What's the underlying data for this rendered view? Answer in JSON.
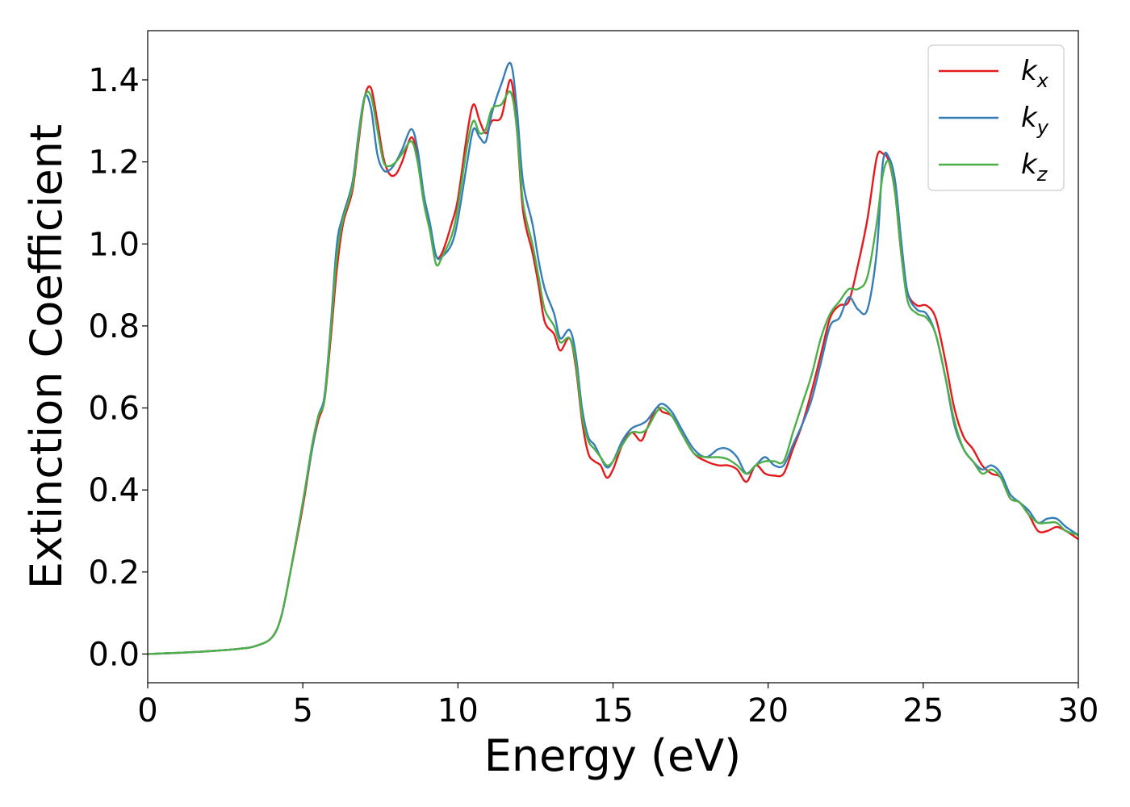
{
  "chart_data": {
    "type": "line",
    "title": "",
    "xlabel": "Energy (eV)",
    "ylabel": "Extinction Coefficient",
    "xlim": [
      0,
      30
    ],
    "ylim": [
      -0.07,
      1.52
    ],
    "xticks": [
      0,
      5,
      10,
      15,
      20,
      25,
      30
    ],
    "xtick_labels": [
      "0",
      "5",
      "10",
      "15",
      "20",
      "25",
      "30"
    ],
    "yticks": [
      0.0,
      0.2,
      0.4,
      0.6,
      0.8,
      1.0,
      1.2,
      1.4
    ],
    "ytick_labels": [
      "0.0",
      "0.2",
      "0.4",
      "0.6",
      "0.8",
      "1.0",
      "1.2",
      "1.4"
    ],
    "grid": false,
    "legend_position": "top-right",
    "series": [
      {
        "name": "k_x",
        "label_main": "k",
        "label_sub": "x",
        "color": "#e41a1c",
        "points": [
          [
            0,
            0.0
          ],
          [
            1,
            0.003
          ],
          [
            2,
            0.007
          ],
          [
            3,
            0.013
          ],
          [
            3.5,
            0.02
          ],
          [
            4,
            0.04
          ],
          [
            4.3,
            0.09
          ],
          [
            4.6,
            0.2
          ],
          [
            5,
            0.36
          ],
          [
            5.3,
            0.5
          ],
          [
            5.5,
            0.57
          ],
          [
            5.7,
            0.62
          ],
          [
            5.9,
            0.77
          ],
          [
            6.1,
            0.94
          ],
          [
            6.3,
            1.05
          ],
          [
            6.6,
            1.13
          ],
          [
            6.8,
            1.25
          ],
          [
            7.0,
            1.36
          ],
          [
            7.2,
            1.38
          ],
          [
            7.4,
            1.3
          ],
          [
            7.6,
            1.21
          ],
          [
            7.8,
            1.17
          ],
          [
            8.0,
            1.17
          ],
          [
            8.2,
            1.2
          ],
          [
            8.5,
            1.26
          ],
          [
            8.7,
            1.21
          ],
          [
            8.9,
            1.11
          ],
          [
            9.1,
            1.04
          ],
          [
            9.3,
            0.97
          ],
          [
            9.5,
            0.98
          ],
          [
            9.8,
            1.05
          ],
          [
            10.0,
            1.11
          ],
          [
            10.3,
            1.27
          ],
          [
            10.5,
            1.34
          ],
          [
            10.7,
            1.3
          ],
          [
            10.9,
            1.27
          ],
          [
            11.1,
            1.3
          ],
          [
            11.4,
            1.31
          ],
          [
            11.7,
            1.4
          ],
          [
            11.9,
            1.28
          ],
          [
            12.1,
            1.08
          ],
          [
            12.4,
            0.98
          ],
          [
            12.6,
            0.9
          ],
          [
            12.8,
            0.81
          ],
          [
            13.1,
            0.78
          ],
          [
            13.3,
            0.74
          ],
          [
            13.6,
            0.77
          ],
          [
            13.8,
            0.7
          ],
          [
            14.0,
            0.57
          ],
          [
            14.2,
            0.49
          ],
          [
            14.4,
            0.47
          ],
          [
            14.6,
            0.46
          ],
          [
            14.8,
            0.43
          ],
          [
            15.0,
            0.45
          ],
          [
            15.3,
            0.51
          ],
          [
            15.6,
            0.54
          ],
          [
            15.9,
            0.52
          ],
          [
            16.1,
            0.55
          ],
          [
            16.4,
            0.6
          ],
          [
            16.6,
            0.59
          ],
          [
            16.9,
            0.58
          ],
          [
            17.2,
            0.54
          ],
          [
            17.6,
            0.49
          ],
          [
            18.0,
            0.47
          ],
          [
            18.4,
            0.46
          ],
          [
            18.7,
            0.46
          ],
          [
            19.0,
            0.45
          ],
          [
            19.3,
            0.42
          ],
          [
            19.6,
            0.46
          ],
          [
            19.9,
            0.44
          ],
          [
            20.2,
            0.435
          ],
          [
            20.5,
            0.44
          ],
          [
            20.8,
            0.5
          ],
          [
            21.1,
            0.56
          ],
          [
            21.4,
            0.64
          ],
          [
            21.7,
            0.73
          ],
          [
            22.0,
            0.82
          ],
          [
            22.3,
            0.85
          ],
          [
            22.6,
            0.86
          ],
          [
            22.9,
            0.95
          ],
          [
            23.2,
            1.06
          ],
          [
            23.5,
            1.21
          ],
          [
            23.7,
            1.22
          ],
          [
            23.9,
            1.2
          ],
          [
            24.1,
            1.12
          ],
          [
            24.3,
            0.97
          ],
          [
            24.5,
            0.88
          ],
          [
            24.8,
            0.85
          ],
          [
            25.1,
            0.85
          ],
          [
            25.4,
            0.82
          ],
          [
            25.7,
            0.72
          ],
          [
            26.0,
            0.6
          ],
          [
            26.3,
            0.53
          ],
          [
            26.6,
            0.5
          ],
          [
            26.9,
            0.46
          ],
          [
            27.2,
            0.44
          ],
          [
            27.5,
            0.43
          ],
          [
            27.8,
            0.38
          ],
          [
            28.1,
            0.37
          ],
          [
            28.4,
            0.34
          ],
          [
            28.7,
            0.3
          ],
          [
            29.0,
            0.3
          ],
          [
            29.3,
            0.31
          ],
          [
            29.6,
            0.3
          ],
          [
            30.0,
            0.28
          ]
        ]
      },
      {
        "name": "k_y",
        "label_main": "k",
        "label_sub": "y",
        "color": "#377eb8",
        "points": [
          [
            0,
            0.0
          ],
          [
            1,
            0.003
          ],
          [
            2,
            0.007
          ],
          [
            3,
            0.013
          ],
          [
            3.5,
            0.02
          ],
          [
            4,
            0.04
          ],
          [
            4.3,
            0.09
          ],
          [
            4.6,
            0.2
          ],
          [
            5,
            0.37
          ],
          [
            5.3,
            0.5
          ],
          [
            5.5,
            0.58
          ],
          [
            5.7,
            0.63
          ],
          [
            5.9,
            0.8
          ],
          [
            6.1,
            1.0
          ],
          [
            6.3,
            1.07
          ],
          [
            6.6,
            1.15
          ],
          [
            6.8,
            1.27
          ],
          [
            7.0,
            1.36
          ],
          [
            7.2,
            1.33
          ],
          [
            7.4,
            1.22
          ],
          [
            7.6,
            1.18
          ],
          [
            7.8,
            1.18
          ],
          [
            8.0,
            1.2
          ],
          [
            8.2,
            1.23
          ],
          [
            8.5,
            1.28
          ],
          [
            8.7,
            1.23
          ],
          [
            8.9,
            1.12
          ],
          [
            9.1,
            1.05
          ],
          [
            9.3,
            0.97
          ],
          [
            9.5,
            0.97
          ],
          [
            9.8,
            1.0
          ],
          [
            10.0,
            1.06
          ],
          [
            10.3,
            1.2
          ],
          [
            10.5,
            1.28
          ],
          [
            10.7,
            1.26
          ],
          [
            10.9,
            1.25
          ],
          [
            11.1,
            1.32
          ],
          [
            11.4,
            1.39
          ],
          [
            11.7,
            1.44
          ],
          [
            11.9,
            1.33
          ],
          [
            12.1,
            1.15
          ],
          [
            12.4,
            1.05
          ],
          [
            12.6,
            0.96
          ],
          [
            12.8,
            0.89
          ],
          [
            13.1,
            0.83
          ],
          [
            13.3,
            0.77
          ],
          [
            13.6,
            0.79
          ],
          [
            13.8,
            0.73
          ],
          [
            14.0,
            0.6
          ],
          [
            14.2,
            0.53
          ],
          [
            14.4,
            0.51
          ],
          [
            14.6,
            0.48
          ],
          [
            14.8,
            0.455
          ],
          [
            15.0,
            0.47
          ],
          [
            15.3,
            0.52
          ],
          [
            15.6,
            0.55
          ],
          [
            15.9,
            0.56
          ],
          [
            16.1,
            0.57
          ],
          [
            16.4,
            0.6
          ],
          [
            16.6,
            0.61
          ],
          [
            16.9,
            0.59
          ],
          [
            17.2,
            0.55
          ],
          [
            17.6,
            0.5
          ],
          [
            18.0,
            0.48
          ],
          [
            18.4,
            0.5
          ],
          [
            18.7,
            0.5
          ],
          [
            19.0,
            0.48
          ],
          [
            19.3,
            0.44
          ],
          [
            19.6,
            0.46
          ],
          [
            19.9,
            0.48
          ],
          [
            20.2,
            0.46
          ],
          [
            20.5,
            0.46
          ],
          [
            20.8,
            0.51
          ],
          [
            21.1,
            0.56
          ],
          [
            21.4,
            0.62
          ],
          [
            21.7,
            0.71
          ],
          [
            22.0,
            0.8
          ],
          [
            22.3,
            0.82
          ],
          [
            22.6,
            0.87
          ],
          [
            22.9,
            0.84
          ],
          [
            23.2,
            0.84
          ],
          [
            23.5,
            0.98
          ],
          [
            23.7,
            1.2
          ],
          [
            23.9,
            1.21
          ],
          [
            24.1,
            1.15
          ],
          [
            24.3,
            1.0
          ],
          [
            24.5,
            0.88
          ],
          [
            24.8,
            0.84
          ],
          [
            25.1,
            0.83
          ],
          [
            25.4,
            0.78
          ],
          [
            25.7,
            0.68
          ],
          [
            26.0,
            0.56
          ],
          [
            26.3,
            0.5
          ],
          [
            26.6,
            0.47
          ],
          [
            26.9,
            0.45
          ],
          [
            27.2,
            0.46
          ],
          [
            27.5,
            0.44
          ],
          [
            27.8,
            0.39
          ],
          [
            28.1,
            0.37
          ],
          [
            28.4,
            0.35
          ],
          [
            28.7,
            0.32
          ],
          [
            29.0,
            0.33
          ],
          [
            29.3,
            0.33
          ],
          [
            29.6,
            0.31
          ],
          [
            30.0,
            0.29
          ]
        ]
      },
      {
        "name": "k_z",
        "label_main": "k",
        "label_sub": "z",
        "color": "#4daf4a",
        "points": [
          [
            0,
            0.0
          ],
          [
            1,
            0.003
          ],
          [
            2,
            0.007
          ],
          [
            3,
            0.013
          ],
          [
            3.5,
            0.02
          ],
          [
            4,
            0.04
          ],
          [
            4.3,
            0.09
          ],
          [
            4.6,
            0.2
          ],
          [
            5,
            0.37
          ],
          [
            5.3,
            0.51
          ],
          [
            5.5,
            0.58
          ],
          [
            5.7,
            0.62
          ],
          [
            5.9,
            0.79
          ],
          [
            6.1,
            0.97
          ],
          [
            6.3,
            1.06
          ],
          [
            6.6,
            1.14
          ],
          [
            6.8,
            1.26
          ],
          [
            7.0,
            1.36
          ],
          [
            7.2,
            1.36
          ],
          [
            7.4,
            1.28
          ],
          [
            7.6,
            1.2
          ],
          [
            7.8,
            1.19
          ],
          [
            8.0,
            1.2
          ],
          [
            8.2,
            1.22
          ],
          [
            8.5,
            1.25
          ],
          [
            8.7,
            1.2
          ],
          [
            8.9,
            1.1
          ],
          [
            9.1,
            1.03
          ],
          [
            9.3,
            0.95
          ],
          [
            9.5,
            0.97
          ],
          [
            9.8,
            1.02
          ],
          [
            10.0,
            1.09
          ],
          [
            10.3,
            1.24
          ],
          [
            10.5,
            1.3
          ],
          [
            10.7,
            1.27
          ],
          [
            10.9,
            1.28
          ],
          [
            11.1,
            1.33
          ],
          [
            11.4,
            1.34
          ],
          [
            11.7,
            1.37
          ],
          [
            11.9,
            1.28
          ],
          [
            12.1,
            1.1
          ],
          [
            12.4,
            1.0
          ],
          [
            12.6,
            0.92
          ],
          [
            12.8,
            0.84
          ],
          [
            13.1,
            0.8
          ],
          [
            13.3,
            0.76
          ],
          [
            13.6,
            0.77
          ],
          [
            13.8,
            0.71
          ],
          [
            14.0,
            0.58
          ],
          [
            14.2,
            0.52
          ],
          [
            14.4,
            0.5
          ],
          [
            14.6,
            0.48
          ],
          [
            14.8,
            0.46
          ],
          [
            15.0,
            0.47
          ],
          [
            15.3,
            0.51
          ],
          [
            15.6,
            0.54
          ],
          [
            15.9,
            0.54
          ],
          [
            16.1,
            0.55
          ],
          [
            16.4,
            0.59
          ],
          [
            16.6,
            0.6
          ],
          [
            16.9,
            0.58
          ],
          [
            17.2,
            0.54
          ],
          [
            17.6,
            0.49
          ],
          [
            18.0,
            0.48
          ],
          [
            18.4,
            0.48
          ],
          [
            18.7,
            0.475
          ],
          [
            19.0,
            0.46
          ],
          [
            19.3,
            0.44
          ],
          [
            19.6,
            0.46
          ],
          [
            19.9,
            0.47
          ],
          [
            20.2,
            0.47
          ],
          [
            20.5,
            0.47
          ],
          [
            20.8,
            0.54
          ],
          [
            21.1,
            0.61
          ],
          [
            21.4,
            0.68
          ],
          [
            21.7,
            0.77
          ],
          [
            22.0,
            0.83
          ],
          [
            22.3,
            0.86
          ],
          [
            22.6,
            0.89
          ],
          [
            22.9,
            0.89
          ],
          [
            23.2,
            0.92
          ],
          [
            23.5,
            1.05
          ],
          [
            23.7,
            1.17
          ],
          [
            23.9,
            1.2
          ],
          [
            24.1,
            1.12
          ],
          [
            24.3,
            0.97
          ],
          [
            24.5,
            0.86
          ],
          [
            24.8,
            0.83
          ],
          [
            25.1,
            0.82
          ],
          [
            25.4,
            0.78
          ],
          [
            25.7,
            0.68
          ],
          [
            26.0,
            0.57
          ],
          [
            26.3,
            0.5
          ],
          [
            26.6,
            0.47
          ],
          [
            26.9,
            0.44
          ],
          [
            27.2,
            0.45
          ],
          [
            27.5,
            0.43
          ],
          [
            27.8,
            0.38
          ],
          [
            28.1,
            0.37
          ],
          [
            28.4,
            0.34
          ],
          [
            28.7,
            0.32
          ],
          [
            29.0,
            0.32
          ],
          [
            29.3,
            0.32
          ],
          [
            29.6,
            0.3
          ],
          [
            30.0,
            0.29
          ]
        ]
      }
    ]
  }
}
